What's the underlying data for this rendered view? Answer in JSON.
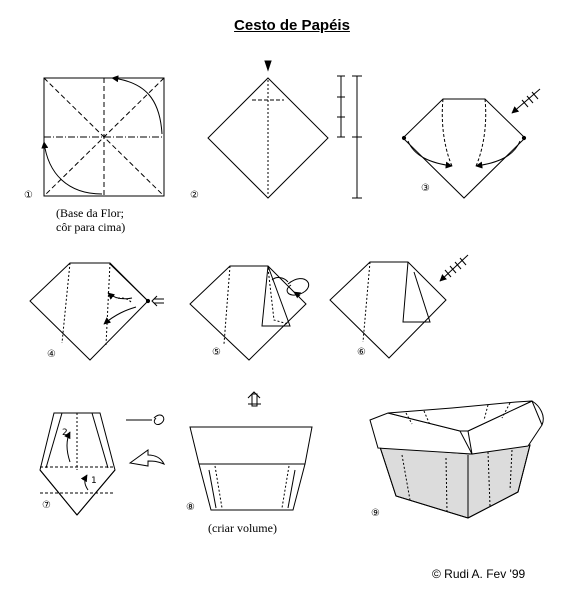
{
  "title": "Cesto de Papéis",
  "steps": [
    {
      "number": "①",
      "caption_lines": [
        "(Base da Flor;",
        "côr para cima)"
      ]
    },
    {
      "number": "②"
    },
    {
      "number": "③"
    },
    {
      "number": "④"
    },
    {
      "number": "⑤"
    },
    {
      "number": "⑥"
    },
    {
      "number": "⑦",
      "labels": [
        "2",
        "1"
      ]
    },
    {
      "number": "⑧",
      "caption": "(criar volume)"
    },
    {
      "number": "⑨"
    }
  ],
  "credit": "© Rudi A. Fev '99",
  "colors": {
    "line": "#000000",
    "basket_fill": "#dcdcdc",
    "background": "#ffffff"
  }
}
